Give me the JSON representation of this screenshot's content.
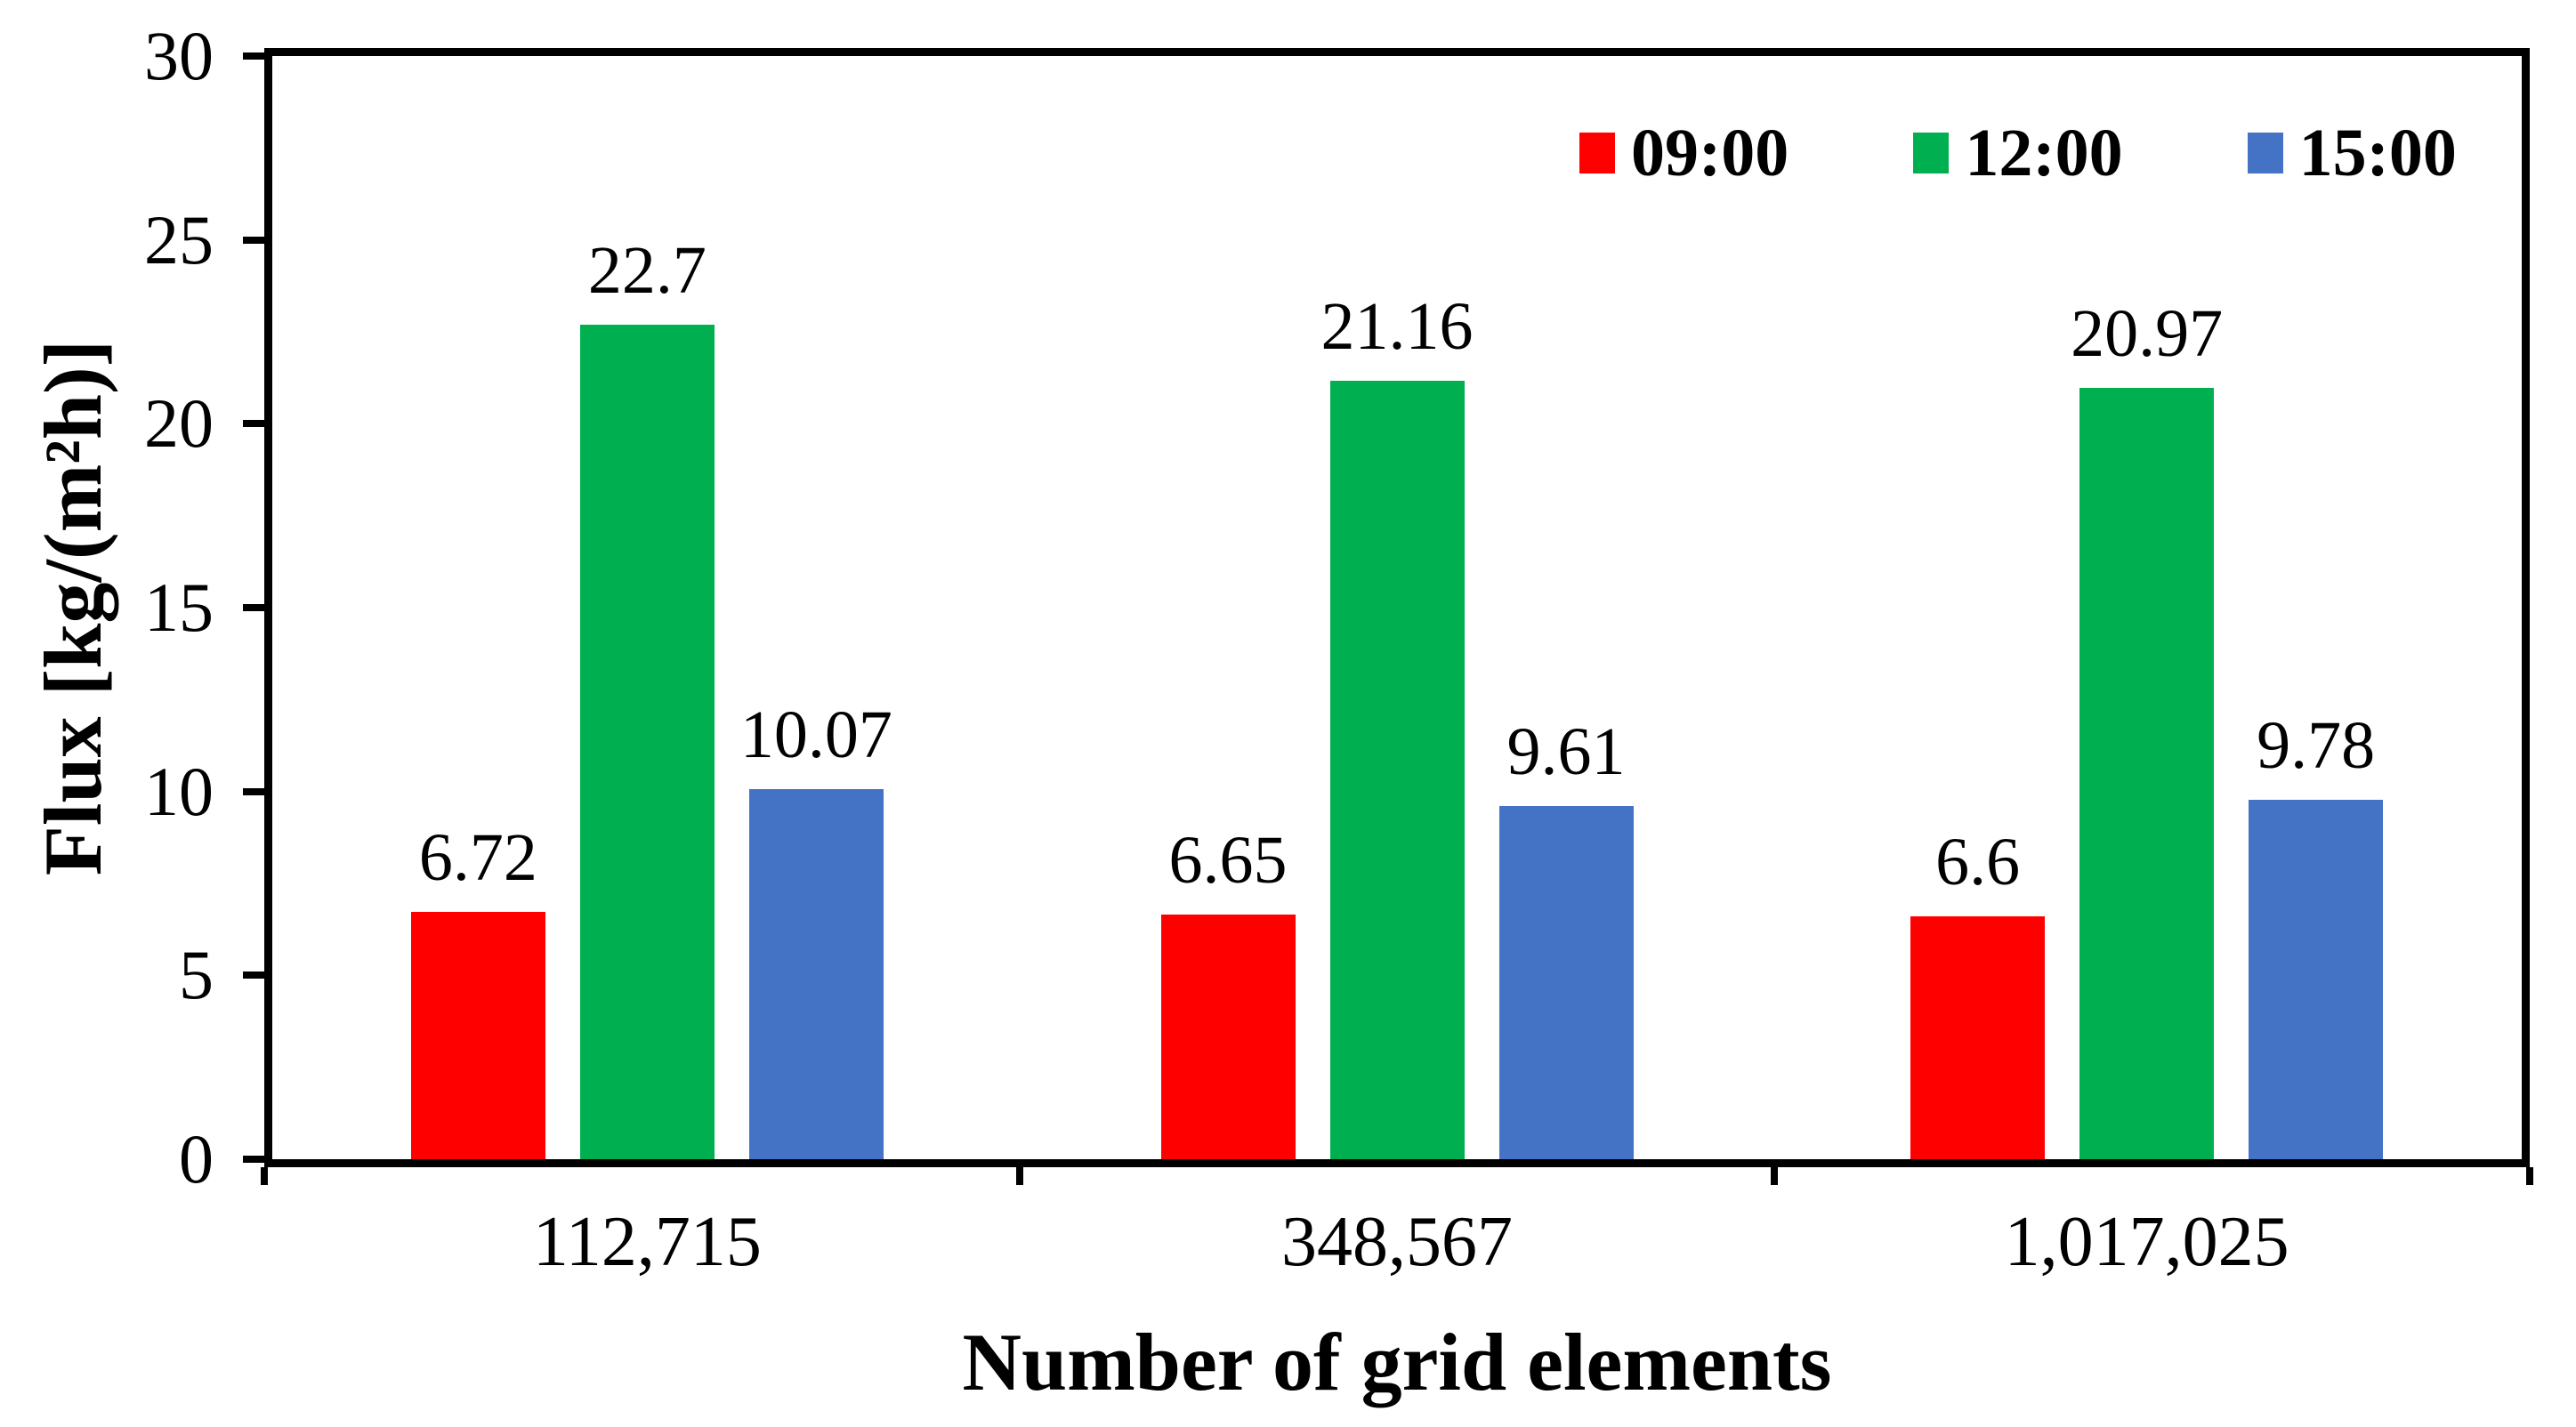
{
  "chart_data": {
    "type": "bar",
    "title": "",
    "xlabel": "Number of grid elements",
    "ylabel": "Flux [kg/(m²h)]",
    "categories": [
      "112,715",
      "348,567",
      "1,017,025"
    ],
    "series": [
      {
        "name": "09:00",
        "color": "#FF0000",
        "values": [
          6.72,
          6.65,
          6.6
        ]
      },
      {
        "name": "12:00",
        "color": "#00B050",
        "values": [
          22.7,
          21.16,
          20.97
        ]
      },
      {
        "name": "15:00",
        "color": "#4472C4",
        "values": [
          10.07,
          9.61,
          9.78
        ]
      }
    ],
    "ylim": [
      0,
      30
    ],
    "yticks": [
      0,
      5,
      10,
      15,
      20,
      25,
      30
    ],
    "grid": false,
    "legend_position": "top-right-inside",
    "value_labels_shown": true
  },
  "colors": {
    "axis": "#000000",
    "background": "#FFFFFF",
    "text": "#000000"
  }
}
